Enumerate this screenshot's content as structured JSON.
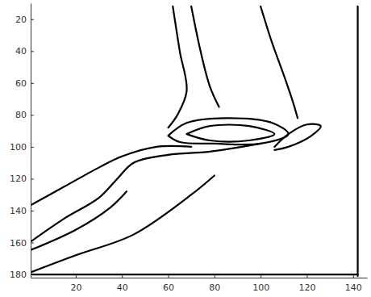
{
  "chart_data": {
    "type": "line",
    "xlim": [
      0.5,
      146
    ],
    "ylim": [
      182,
      10
    ],
    "xticks": [
      20,
      40,
      60,
      80,
      100,
      120,
      140
    ],
    "yticks": [
      20,
      40,
      60,
      80,
      100,
      120,
      140,
      160,
      180
    ],
    "series": [
      {
        "color": "#000000",
        "x": [
          62,
          65,
          68,
          64,
          60
        ],
        "values": [
          12,
          40,
          65,
          80,
          88
        ]
      },
      {
        "color": "#000000",
        "x": [
          70,
          74,
          78,
          82
        ],
        "values": [
          12,
          40,
          62,
          75
        ]
      },
      {
        "color": "#000000",
        "x": [
          100,
          105,
          110,
          114,
          116
        ],
        "values": [
          12,
          35,
          55,
          72,
          82
        ]
      },
      {
        "color": "#000000",
        "x": [
          60,
          68,
          85,
          105,
          112,
          100,
          80,
          65,
          60
        ],
        "values": [
          93,
          85,
          82,
          85,
          92,
          98,
          98,
          97,
          93
        ]
      },
      {
        "color": "#000000",
        "x": [
          68,
          78,
          95,
          106,
          95,
          78,
          68
        ],
        "values": [
          92,
          87,
          87,
          92,
          96,
          96,
          92
        ]
      },
      {
        "color": "#000000",
        "x": [
          106,
          112,
          120,
          126,
          122,
          112,
          106
        ],
        "values": [
          100,
          92,
          86,
          87,
          93,
          100,
          102
        ]
      },
      {
        "color": "#000000",
        "x": [
          0,
          15,
          30,
          40,
          55,
          70
        ],
        "values": [
          137,
          125,
          113,
          106,
          100,
          100
        ]
      },
      {
        "color": "#000000",
        "x": [
          0,
          15,
          30,
          38,
          45,
          60,
          78,
          100
        ],
        "values": [
          160,
          145,
          132,
          120,
          110,
          105,
          103,
          98
        ]
      },
      {
        "color": "#000000",
        "x": [
          0,
          20,
          35,
          42
        ],
        "values": [
          165,
          152,
          138,
          128
        ]
      },
      {
        "color": "#000000",
        "x": [
          0,
          20,
          45,
          70,
          80
        ],
        "values": [
          179,
          168,
          155,
          130,
          118
        ]
      },
      {
        "color": "#000000",
        "x": [
          142,
          142
        ],
        "values": [
          12,
          181
        ]
      },
      {
        "color": "#000000",
        "x": [
          1,
          142
        ],
        "values": [
          180,
          180
        ]
      }
    ]
  }
}
